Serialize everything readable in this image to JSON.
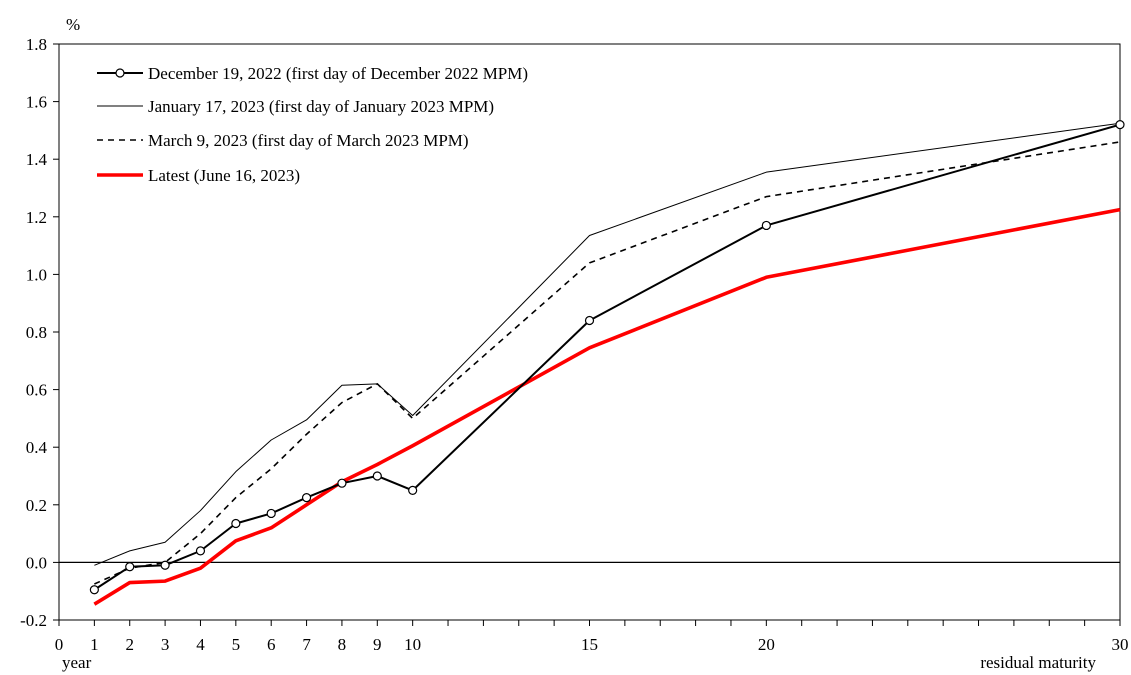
{
  "chart_data": {
    "type": "line",
    "ylabel": "%",
    "xlabel": "residual maturity",
    "x_unit_label": "year",
    "xlim": [
      0,
      30
    ],
    "ylim": [
      -0.2,
      1.8
    ],
    "x_ticks": [
      0,
      1,
      2,
      3,
      4,
      5,
      6,
      7,
      8,
      9,
      10,
      15,
      20,
      30
    ],
    "y_ticks": [
      "-0.2",
      "0.0",
      "0.2",
      "0.4",
      "0.6",
      "0.8",
      "1.0",
      "1.2",
      "1.4",
      "1.6",
      "1.8"
    ],
    "grid": false,
    "legend_position": "top-left",
    "series": [
      {
        "name": "December 19, 2022 (first day of December 2022 MPM)",
        "color": "#000000",
        "style": "solid-with-circle-markers",
        "x": [
          1,
          2,
          3,
          4,
          5,
          6,
          7,
          8,
          9,
          10,
          15,
          20,
          30
        ],
        "y": [
          -0.095,
          -0.015,
          -0.01,
          0.04,
          0.135,
          0.17,
          0.225,
          0.275,
          0.3,
          0.25,
          0.84,
          1.17,
          1.52
        ]
      },
      {
        "name": "January 17, 2023 (first day of January 2023 MPM)",
        "color": "#000000",
        "style": "thin-solid",
        "x": [
          1,
          2,
          3,
          4,
          5,
          6,
          7,
          8,
          9,
          10,
          15,
          20,
          30
        ],
        "y": [
          -0.01,
          0.04,
          0.07,
          0.18,
          0.315,
          0.425,
          0.495,
          0.615,
          0.62,
          0.51,
          1.135,
          1.355,
          1.525
        ]
      },
      {
        "name": "March 9, 2023 (first day of March 2023 MPM)",
        "color": "#000000",
        "style": "dashed",
        "x": [
          1,
          2,
          3,
          4,
          5,
          6,
          7,
          8,
          9,
          10,
          15,
          20,
          30
        ],
        "y": [
          -0.075,
          -0.02,
          0.0,
          0.1,
          0.225,
          0.325,
          0.445,
          0.555,
          0.62,
          0.5,
          1.04,
          1.27,
          1.46
        ]
      },
      {
        "name": "Latest (June 16, 2023)",
        "color": "#ff0000",
        "style": "thick-solid",
        "x": [
          1,
          2,
          3,
          4,
          5,
          6,
          7,
          8,
          9,
          10,
          15,
          20,
          30
        ],
        "y": [
          -0.145,
          -0.07,
          -0.065,
          -0.02,
          0.075,
          0.12,
          0.2,
          0.28,
          0.34,
          0.405,
          0.745,
          0.99,
          1.225
        ]
      }
    ]
  }
}
